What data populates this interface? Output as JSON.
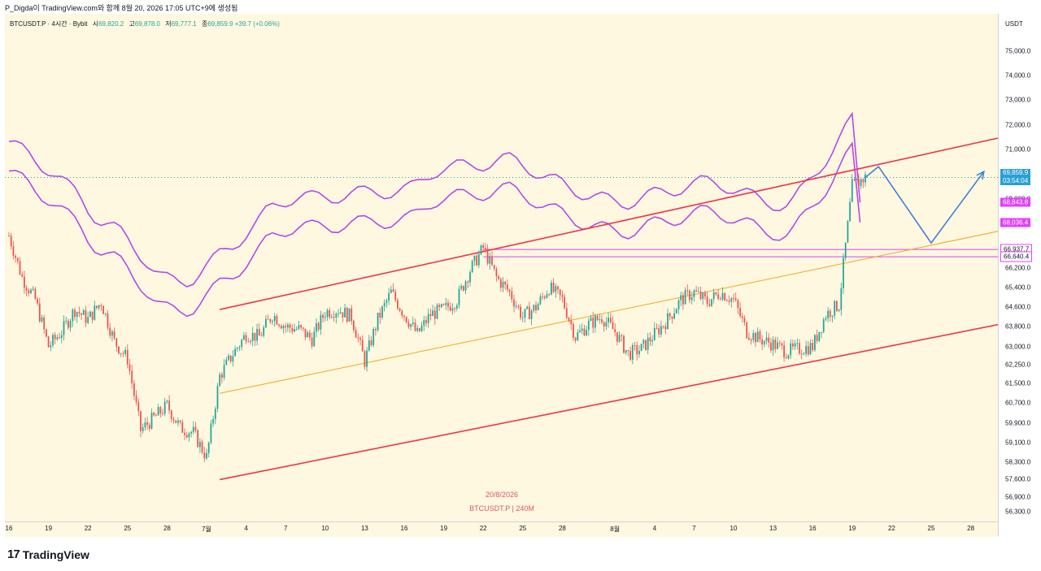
{
  "header": "P_Digda이 TradingView.com와 함께 8월 20, 2026 17:05 UTC+9에 생성됨",
  "legend": {
    "symbol": "BTCUSDT.P · 4시간 · Bybit",
    "open_label": "시",
    "open": "69,820.2",
    "high_label": "고",
    "high": "69,878.0",
    "low_label": "저",
    "low": "69,777.1",
    "close_label": "종",
    "close": "69,859.9",
    "change": "+39.7 (+0.06%)"
  },
  "currency": "USDT",
  "watermark": {
    "date": "20/8/2026",
    "symbol": "BTCUSDT.P | 240M"
  },
  "brand": {
    "logo": "17",
    "name": "TradingView"
  },
  "colors": {
    "up": "#26a69a",
    "down": "#ef5350",
    "channel": "#f0344a",
    "midline": "#f5a623",
    "envelope": "#b34ae8",
    "projection": "#3f7fdc",
    "current_price": "#2a9fd6",
    "level": "#e040fb"
  },
  "chart_data": {
    "type": "candlestick",
    "timeframe": "4시간",
    "ylim": [
      55900,
      76500
    ],
    "yticks": [
      "75,000.0",
      "74,000.0",
      "73,000.0",
      "72,000.0",
      "71,000.0",
      "70,000.0",
      "69,000.0",
      "66,200.0",
      "65,400.0",
      "64,600.0",
      "63,800.0",
      "63,000.0",
      "62,250.0",
      "61,500.0",
      "60,700.0",
      "59,900.0",
      "59,100.0",
      "58,300.0",
      "57,600.0",
      "56,900.0",
      "56,300.0"
    ],
    "ytick_values": [
      75000,
      74000,
      73000,
      72000,
      71000,
      70000,
      69000,
      66200,
      65400,
      64600,
      63800,
      63000,
      62250,
      61500,
      60700,
      59900,
      59100,
      58300,
      57600,
      56900,
      56300
    ],
    "xticks": [
      "16",
      "19",
      "22",
      "25",
      "28",
      "7월",
      "4",
      "7",
      "10",
      "13",
      "16",
      "19",
      "22",
      "25",
      "28",
      "8월",
      "4",
      "7",
      "10",
      "13",
      "16",
      "19",
      "22",
      "25",
      "28"
    ],
    "xtick_day_index": [
      0,
      3,
      6,
      9,
      12,
      15,
      18,
      21,
      24,
      27,
      30,
      33,
      36,
      39,
      42,
      46,
      49,
      52,
      55,
      58,
      61,
      64,
      67,
      70,
      73
    ],
    "close_path": [
      [
        0,
        67500
      ],
      [
        1,
        65800
      ],
      [
        2,
        64900
      ],
      [
        3,
        63000
      ],
      [
        4,
        63600
      ],
      [
        5,
        64500
      ],
      [
        6,
        64100
      ],
      [
        7,
        64800
      ],
      [
        8,
        63200
      ],
      [
        9,
        62500
      ],
      [
        10,
        59600
      ],
      [
        11,
        60100
      ],
      [
        12,
        60600
      ],
      [
        13,
        59700
      ],
      [
        14,
        59500
      ],
      [
        15,
        58500
      ],
      [
        16,
        61800
      ],
      [
        17,
        62700
      ],
      [
        18,
        63500
      ],
      [
        19,
        63400
      ],
      [
        20,
        64300
      ],
      [
        21,
        63800
      ],
      [
        22,
        63700
      ],
      [
        23,
        63300
      ],
      [
        24,
        64400
      ],
      [
        25,
        64500
      ],
      [
        26,
        64200
      ],
      [
        27,
        62400
      ],
      [
        28,
        64100
      ],
      [
        29,
        65200
      ],
      [
        30,
        64300
      ],
      [
        31,
        63500
      ],
      [
        32,
        64300
      ],
      [
        33,
        64500
      ],
      [
        34,
        64900
      ],
      [
        35,
        66100
      ],
      [
        36,
        67000
      ],
      [
        37,
        65800
      ],
      [
        38,
        65200
      ],
      [
        39,
        64200
      ],
      [
        40,
        64600
      ],
      [
        41,
        65400
      ],
      [
        42,
        64900
      ],
      [
        43,
        63400
      ],
      [
        44,
        63900
      ],
      [
        45,
        64200
      ],
      [
        46,
        63600
      ],
      [
        47,
        62700
      ],
      [
        48,
        62900
      ],
      [
        49,
        63500
      ],
      [
        50,
        64100
      ],
      [
        51,
        64900
      ],
      [
        52,
        65200
      ],
      [
        53,
        64800
      ],
      [
        54,
        65200
      ],
      [
        55,
        64900
      ],
      [
        56,
        63600
      ],
      [
        57,
        63300
      ],
      [
        58,
        63100
      ],
      [
        59,
        62800
      ],
      [
        60,
        62900
      ],
      [
        61,
        63000
      ],
      [
        62,
        64300
      ],
      [
        63,
        64700
      ],
      [
        64,
        69500
      ],
      [
        65,
        69860
      ]
    ],
    "last_close": 69859.9,
    "levels": [
      66937.7,
      66640.4
    ],
    "channel_upper": [
      [
        16,
        64500
      ],
      [
        78,
        71800
      ]
    ],
    "channel_lower": [
      [
        16,
        57600
      ],
      [
        78,
        64200
      ]
    ],
    "midline": [
      [
        16,
        61100
      ],
      [
        78,
        68000
      ]
    ],
    "envelope_upper_right": 68843.8,
    "envelope_lower_right": 68036.4,
    "projection_path": [
      [
        65,
        69860
      ],
      [
        66,
        70300
      ],
      [
        70,
        67200
      ],
      [
        74,
        70100
      ]
    ],
    "price_labels": [
      {
        "text": "69,859.9",
        "sub": "03:54:04",
        "value": 69859.9,
        "bg": "#2a9fd6",
        "fg": "#ffffff"
      },
      {
        "text": "68,843.8",
        "value": 68843.8,
        "bg": "#e040fb",
        "fg": "#ffffff"
      },
      {
        "text": "68,036.4",
        "value": 68036.4,
        "bg": "#e040fb",
        "fg": "#ffffff"
      },
      {
        "text": "66,937.7",
        "value": 66937.7,
        "bg": "#ffffff",
        "fg": "#131722",
        "border": "#e040fb"
      },
      {
        "text": "66,640.4",
        "value": 66640.4,
        "bg": "#ffffff",
        "fg": "#131722",
        "border": "#e040fb"
      }
    ]
  }
}
